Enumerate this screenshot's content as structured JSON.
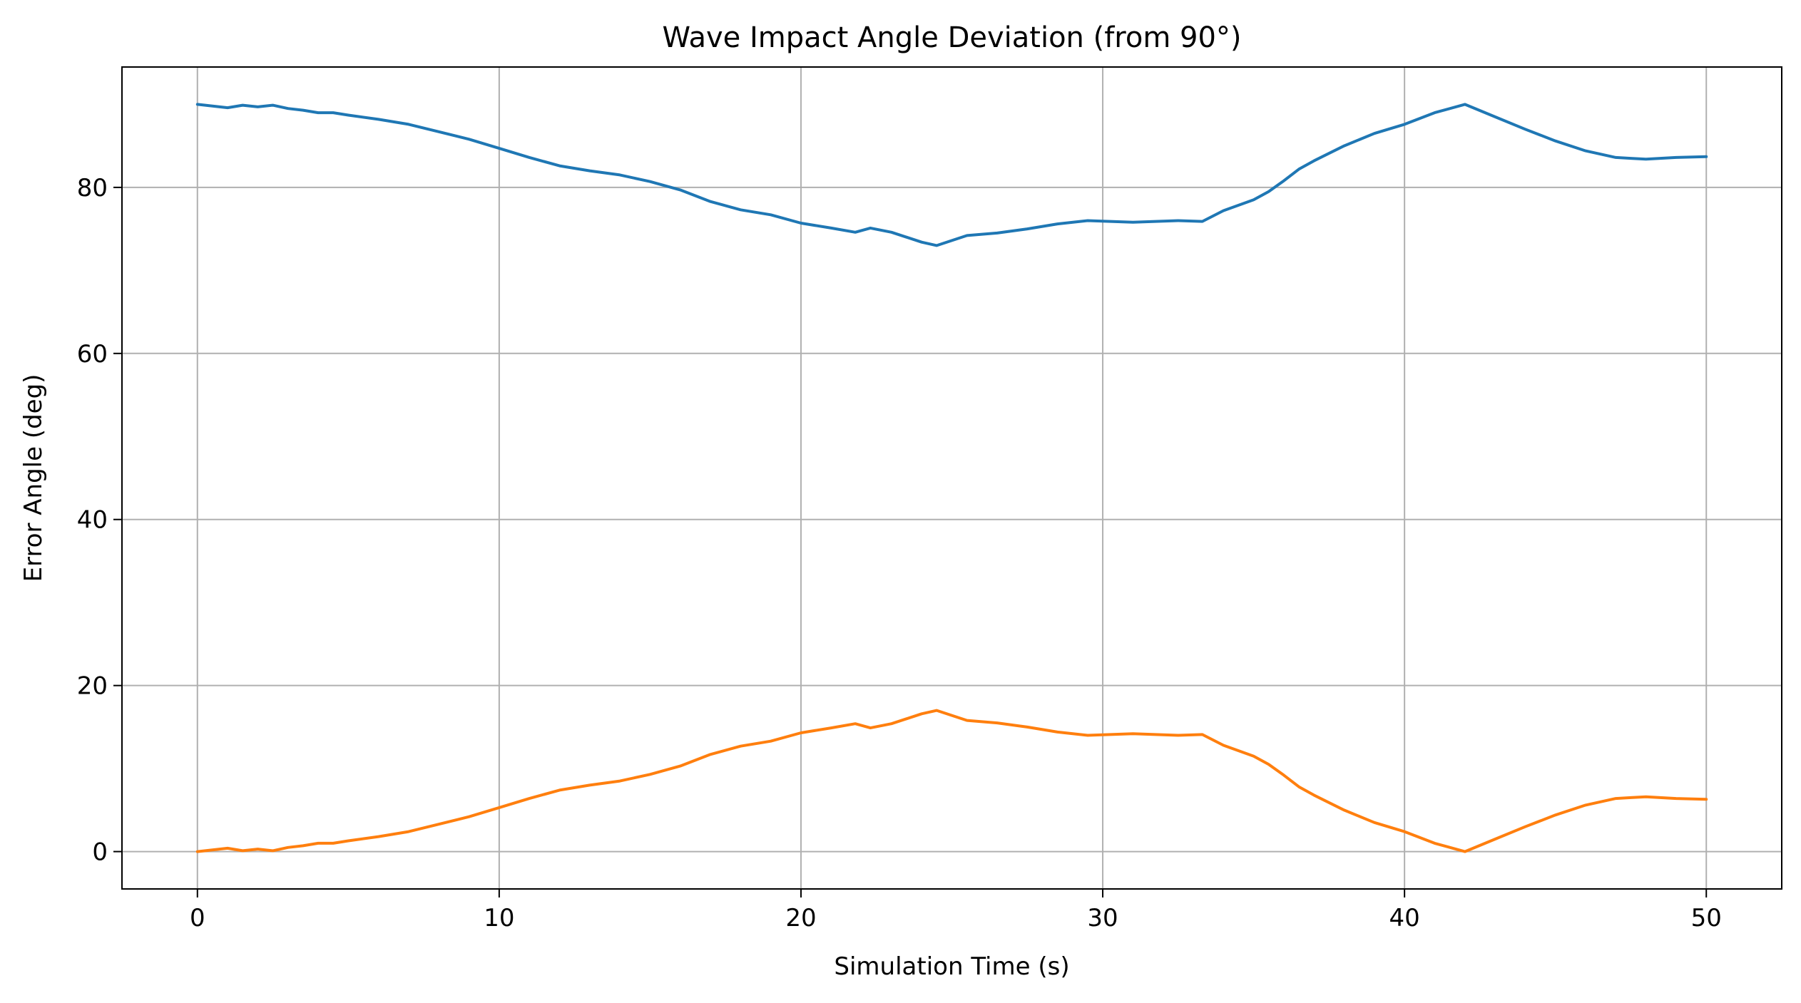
{
  "chart_data": {
    "type": "line",
    "title": "Wave Impact Angle Deviation (from 90°)",
    "xlabel": "Simulation Time (s)",
    "ylabel": "Error Angle (deg)",
    "xlim": [
      -2.5,
      52.5
    ],
    "ylim": [
      -4.5,
      94.5
    ],
    "xticks": [
      0,
      10,
      20,
      30,
      40,
      50
    ],
    "yticks": [
      0,
      20,
      40,
      60,
      80
    ],
    "grid": true,
    "series": [
      {
        "color": "#1f77b4",
        "x": [
          0,
          0.5,
          1,
          1.5,
          2,
          2.5,
          3,
          3.5,
          4,
          4.5,
          5,
          6,
          7,
          8,
          9,
          10,
          11,
          12,
          13,
          14,
          15,
          16,
          17,
          18,
          19,
          20,
          21,
          21.8,
          22.3,
          23,
          24,
          24.5,
          25,
          25.5,
          26.5,
          27.5,
          28.5,
          29.5,
          31,
          32.5,
          33.3,
          34,
          35,
          35.5,
          36,
          36.5,
          37,
          38,
          39,
          40,
          41,
          42,
          43,
          44,
          45,
          46,
          47,
          47.5,
          48,
          49,
          50
        ],
        "y": [
          90,
          89.8,
          89.6,
          89.9,
          89.7,
          89.9,
          89.5,
          89.3,
          89.0,
          89.0,
          88.7,
          88.2,
          87.6,
          86.7,
          85.8,
          84.7,
          83.6,
          82.6,
          82.0,
          81.5,
          80.7,
          79.7,
          78.3,
          77.3,
          76.7,
          75.7,
          75.1,
          74.6,
          75.1,
          74.6,
          73.4,
          73.0,
          73.6,
          74.2,
          74.5,
          75.0,
          75.6,
          76.0,
          75.8,
          76.0,
          75.9,
          77.2,
          78.5,
          79.5,
          80.8,
          82.2,
          83.2,
          85.0,
          86.5,
          87.6,
          89.0,
          90.0,
          88.5,
          87.0,
          85.6,
          84.4,
          83.6,
          83.5,
          83.4,
          83.6,
          83.7
        ]
      },
      {
        "color": "#ff7f0e",
        "x": [
          0,
          0.5,
          1,
          1.5,
          2,
          2.5,
          3,
          3.5,
          4,
          4.5,
          5,
          6,
          7,
          8,
          9,
          10,
          11,
          12,
          13,
          14,
          15,
          16,
          17,
          18,
          19,
          20,
          21,
          21.8,
          22.3,
          23,
          24,
          24.5,
          25,
          25.5,
          26.5,
          27.5,
          28.5,
          29.5,
          31,
          32.5,
          33.3,
          34,
          35,
          35.5,
          36,
          36.5,
          37,
          38,
          39,
          40,
          41,
          42,
          43,
          44,
          45,
          46,
          47,
          47.5,
          48,
          49,
          50
        ],
        "y": [
          0,
          0.2,
          0.4,
          0.1,
          0.3,
          0.1,
          0.5,
          0.7,
          1.0,
          1.0,
          1.3,
          1.8,
          2.4,
          3.3,
          4.2,
          5.3,
          6.4,
          7.4,
          8.0,
          8.5,
          9.3,
          10.3,
          11.7,
          12.7,
          13.3,
          14.3,
          14.9,
          15.4,
          14.9,
          15.4,
          16.6,
          17.0,
          16.4,
          15.8,
          15.5,
          15.0,
          14.4,
          14.0,
          14.2,
          14.0,
          14.1,
          12.8,
          11.5,
          10.5,
          9.2,
          7.8,
          6.8,
          5.0,
          3.5,
          2.4,
          1.0,
          0.0,
          1.5,
          3.0,
          4.4,
          5.6,
          6.4,
          6.5,
          6.6,
          6.4,
          6.3
        ]
      }
    ]
  }
}
